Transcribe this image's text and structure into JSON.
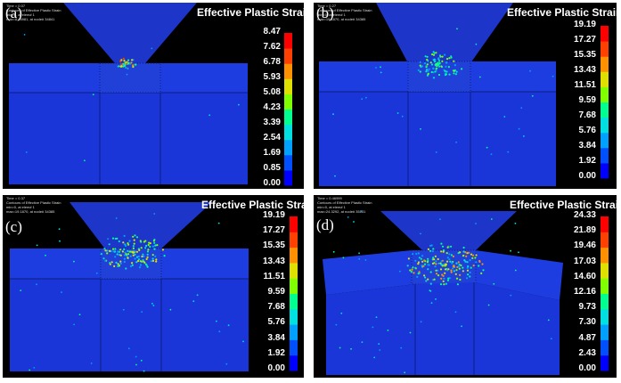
{
  "colors": {
    "background": "#000000",
    "part": "#1a36d8",
    "scale": [
      "#0000ff",
      "#0050ff",
      "#00a0ff",
      "#00e0e0",
      "#00ff90",
      "#80ff00",
      "#e0e000",
      "#ff9000",
      "#ff4000",
      "#ff0000"
    ]
  },
  "panels": [
    {
      "label": "(a)",
      "title": "Effective Plastic Strain",
      "info": [
        "Time =      0.07",
        "Contours of Effective Plastic Strain",
        "min=0, at elem# 1",
        "max=8.46981, at node# 34841"
      ],
      "ticks": [
        "8.47",
        "7.62",
        "6.78",
        "5.93",
        "5.08",
        "4.23",
        "3.39",
        "2.54",
        "1.69",
        "0.85",
        "0.00"
      ],
      "max_value": 8.47
    },
    {
      "label": "(b)",
      "title": "Effective Plastic Strain",
      "info": [
        "Time =      0.27",
        "Contours of Effective Plastic Strain",
        "min=0, at elem# 1",
        "max=19.1870, at node# 34385"
      ],
      "ticks": [
        "19.19",
        "17.27",
        "15.35",
        "13.43",
        "11.51",
        "9.59",
        "7.68",
        "5.76",
        "3.84",
        "1.92",
        "0.00"
      ],
      "max_value": 19.19
    },
    {
      "label": "(c)",
      "title": "Effective Plastic Strain",
      "info": [
        "Time =      0.37",
        "Contours of Effective Plastic Strain",
        "min=0, at elem# 1",
        "max=19.1870, at node# 34385"
      ],
      "ticks": [
        "19.19",
        "17.27",
        "15.35",
        "13.43",
        "11.51",
        "9.59",
        "7.68",
        "5.76",
        "3.84",
        "1.92",
        "0.00"
      ],
      "max_value": 19.19
    },
    {
      "label": "(d)",
      "title": "Effective Plastic Strain",
      "info": [
        "Time =      0.46999",
        "Contours of Effective Plastic Strain",
        "min=0, at elem# 1",
        "max=24.3292, at node# 35131"
      ],
      "ticks": [
        "24.33",
        "21.89",
        "19.46",
        "17.03",
        "14.60",
        "12.16",
        "9.73",
        "7.30",
        "4.87",
        "2.43",
        "0.00"
      ],
      "max_value": 24.33
    }
  ]
}
